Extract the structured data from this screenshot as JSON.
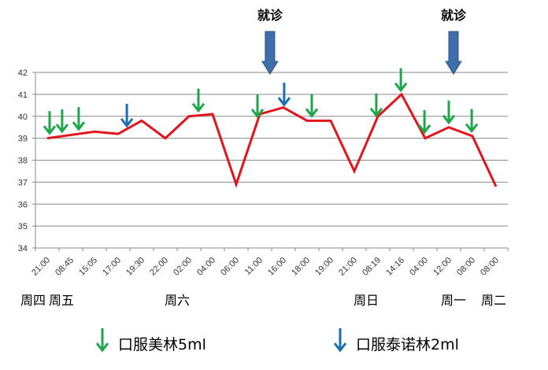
{
  "chart_data": {
    "type": "line",
    "title": "",
    "xlabel": "",
    "ylabel": "",
    "ylim": [
      34,
      42
    ],
    "yticks": [
      34,
      35,
      36,
      37,
      38,
      39,
      40,
      41,
      42
    ],
    "grid": true,
    "categories": [
      "21:00",
      "08:45",
      "15:05",
      "17:00",
      "19:30",
      "22:00",
      "02:00",
      "04:00",
      "06:00",
      "11:00",
      "16:00",
      "18:00",
      "19:00",
      "21:00",
      "08:19",
      "14:16",
      "04:00",
      "12:00",
      "08:00",
      "08:00"
    ],
    "values": [
      39.0,
      39.15,
      39.3,
      39.2,
      39.8,
      39.0,
      40.0,
      40.1,
      36.9,
      40.1,
      40.4,
      39.8,
      39.8,
      37.5,
      40.0,
      41.0,
      39.0,
      39.5,
      39.1,
      36.8
    ],
    "line_color": "#e3141b",
    "days": [
      {
        "label": "周四",
        "at": -0.6
      },
      {
        "label": "周五",
        "at": 0.6
      },
      {
        "label": "周六",
        "at": 5.5
      },
      {
        "label": "周日",
        "at": 13.5
      },
      {
        "label": "周一",
        "at": 17.2
      },
      {
        "label": "周二",
        "at": 18.9
      }
    ],
    "markers_meilin": [
      0.1,
      0.63,
      1.33,
      6.4,
      8.9,
      11.2,
      13.93,
      14.97,
      15.97,
      17.0,
      17.97
    ],
    "markers_tainuolin": [
      3.37,
      10.03
    ],
    "visits": [
      {
        "label": "就诊",
        "at": 9.43
      },
      {
        "label": "就诊",
        "at": 17.2
      }
    ],
    "legend": [
      {
        "label": "口服美林5ml",
        "color": "#1fa64a"
      },
      {
        "label": "口服泰诺林2ml",
        "color": "#1b6fb5"
      }
    ],
    "visit_color": "#3f6ea8"
  }
}
